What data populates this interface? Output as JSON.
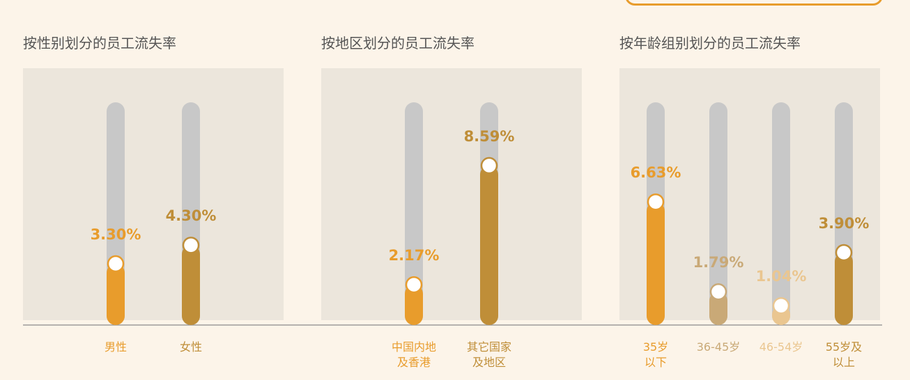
{
  "chart_data": [
    {
      "type": "bar",
      "title": "按性别划分的员工流失率",
      "categories": [
        "男性",
        "女性"
      ],
      "values": [
        3.3,
        4.3
      ],
      "value_labels": [
        "3.30%",
        "4.30%"
      ],
      "colors": [
        "#e89c2c",
        "#bf8e38"
      ],
      "ylim": [
        0,
        12
      ]
    },
    {
      "type": "bar",
      "title": "按地区划分的员工流失率",
      "categories": [
        "中国内地\n及香港",
        "其它国家\n及地区"
      ],
      "values": [
        2.17,
        8.59
      ],
      "value_labels": [
        "2.17%",
        "8.59%"
      ],
      "colors": [
        "#e89c2c",
        "#bf8e38"
      ],
      "ylim": [
        0,
        12
      ]
    },
    {
      "type": "bar",
      "title": "按年龄组别划分的员工流失率",
      "categories": [
        "35岁\n以下",
        "36-45岁",
        "46-54岁",
        "55岁及\n以上"
      ],
      "values": [
        6.63,
        1.79,
        1.04,
        3.9
      ],
      "value_labels": [
        "6.63%",
        "1.79%",
        "1.04%",
        "3.90%"
      ],
      "colors": [
        "#e89c2c",
        "#c9a977",
        "#eac690",
        "#bf8e38"
      ],
      "ylim": [
        0,
        12
      ]
    }
  ]
}
